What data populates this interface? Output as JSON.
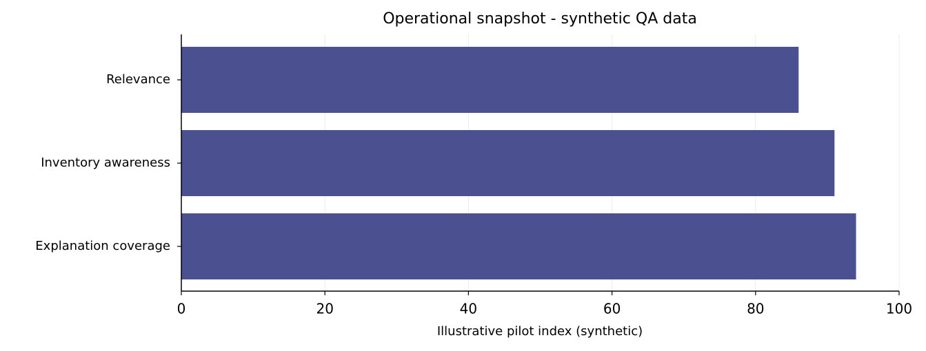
{
  "chart_data": {
    "type": "barh",
    "title": "Operational snapshot - synthetic QA data",
    "xlabel": "Illustrative pilot index (synthetic)",
    "categories": [
      "Relevance",
      "Inventory awareness",
      "Explanation coverage"
    ],
    "values": [
      86,
      91,
      94
    ],
    "color": "#4b5190",
    "xlim": [
      0,
      100
    ],
    "xticks": [
      0,
      20,
      40,
      60,
      80,
      100
    ],
    "grid": true
  }
}
